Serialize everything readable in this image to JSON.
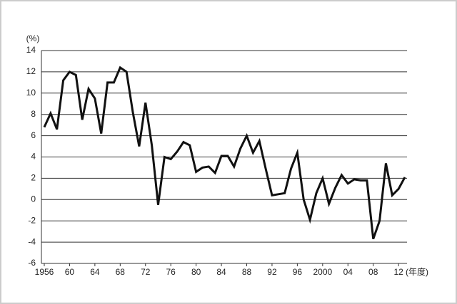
{
  "chart_data": {
    "type": "line",
    "y_label": "(%)",
    "x_label": "(年度)",
    "x": [
      1956,
      1957,
      1958,
      1959,
      1960,
      1961,
      1962,
      1963,
      1964,
      1965,
      1966,
      1967,
      1968,
      1969,
      1970,
      1971,
      1972,
      1973,
      1974,
      1975,
      1976,
      1977,
      1978,
      1979,
      1980,
      1981,
      1982,
      1983,
      1984,
      1985,
      1986,
      1987,
      1988,
      1989,
      1990,
      1991,
      1992,
      1993,
      1994,
      1995,
      1996,
      1997,
      1998,
      1999,
      2000,
      2001,
      2002,
      2003,
      2004,
      2005,
      2006,
      2007,
      2008,
      2009,
      2010,
      2011,
      2012,
      2013
    ],
    "series": [
      {
        "color": "#111111",
        "values": [
          6.8,
          8.1,
          6.6,
          11.2,
          12.0,
          11.7,
          7.5,
          10.4,
          9.5,
          6.2,
          11.0,
          11.0,
          12.4,
          12.0,
          8.2,
          5.0,
          9.1,
          5.1,
          -0.5,
          4.0,
          3.8,
          4.5,
          5.4,
          5.1,
          2.6,
          3.0,
          3.1,
          2.5,
          4.1,
          4.1,
          3.1,
          4.8,
          6.0,
          4.4,
          5.5,
          2.9,
          0.4,
          0.5,
          0.6,
          2.9,
          4.4,
          0.0,
          -1.9,
          0.6,
          2.0,
          -0.4,
          1.1,
          2.3,
          1.5,
          1.9,
          1.8,
          1.8,
          -3.7,
          -2.0,
          3.4,
          0.4,
          1.0,
          2.1
        ]
      }
    ],
    "xlim": [
      1956,
      2013
    ],
    "xticks": [
      {
        "value": 1956,
        "label": "1956"
      },
      {
        "value": 1960,
        "label": "60"
      },
      {
        "value": 1964,
        "label": "64"
      },
      {
        "value": 1968,
        "label": "68"
      },
      {
        "value": 1972,
        "label": "72"
      },
      {
        "value": 1976,
        "label": "76"
      },
      {
        "value": 1980,
        "label": "80"
      },
      {
        "value": 1984,
        "label": "84"
      },
      {
        "value": 1988,
        "label": "88"
      },
      {
        "value": 1992,
        "label": "92"
      },
      {
        "value": 1996,
        "label": "96"
      },
      {
        "value": 2000,
        "label": "2000"
      },
      {
        "value": 2004,
        "label": "04"
      },
      {
        "value": 2008,
        "label": "08"
      },
      {
        "value": 2012,
        "label": "12"
      }
    ],
    "ylim": [
      -6,
      14
    ],
    "yticks": [
      -6,
      -4,
      -2,
      0,
      2,
      4,
      6,
      8,
      10,
      12,
      14
    ],
    "grid": true
  }
}
